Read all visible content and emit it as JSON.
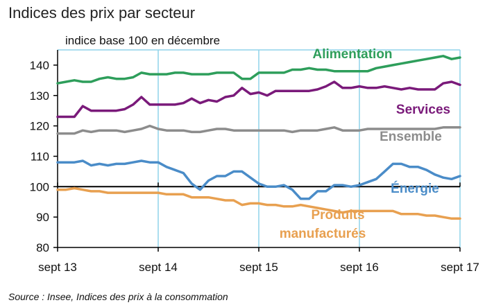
{
  "title": "Indices des prix par secteur",
  "source": "Source : Insee, Indices des prix à la consommation",
  "chart_data": {
    "type": "line",
    "ylabel": "indice base 100 en décembre",
    "ylim": [
      80,
      145
    ],
    "yticks": [
      80,
      90,
      100,
      110,
      120,
      130,
      140
    ],
    "xlim": [
      0,
      48
    ],
    "xticks": [
      0,
      12,
      24,
      36,
      48
    ],
    "xtick_labels": [
      "sept 13",
      "sept 14",
      "sept 15",
      "sept 16",
      "sept 17"
    ],
    "grid": true,
    "reference_line": 100,
    "series": [
      {
        "name": "Alimentation",
        "color": "#2e9e5b",
        "label_lines": [
          "Alimentation"
        ],
        "values": [
          134,
          134.5,
          135,
          134.5,
          134.5,
          135.5,
          136,
          135.5,
          135.5,
          136,
          137.5,
          137,
          137,
          137,
          137.5,
          137.5,
          137,
          137,
          137,
          137.5,
          137.5,
          137.5,
          135.5,
          135.5,
          137.5,
          137.5,
          137.5,
          137.5,
          138.5,
          138.5,
          139,
          138.5,
          138.5,
          138,
          138,
          138,
          138,
          138,
          139,
          139.5,
          140,
          140.5,
          141,
          141.5,
          142,
          142.5,
          143,
          142,
          142.5
        ]
      },
      {
        "name": "Services",
        "color": "#7a1a7a",
        "label_lines": [
          "Services"
        ],
        "values": [
          123,
          123,
          123,
          126.5,
          125,
          125,
          125,
          125,
          125.5,
          127,
          129.5,
          127,
          127,
          127,
          127,
          127.5,
          129,
          127.5,
          128.5,
          128,
          129.5,
          130,
          132.5,
          130.5,
          131,
          130,
          131.5,
          131.5,
          131.5,
          131.5,
          131.5,
          132,
          133,
          134.5,
          132.5,
          132.5,
          133,
          132.5,
          132.5,
          133,
          132.5,
          132,
          132.5,
          132,
          132,
          132,
          134,
          134.5,
          133.5
        ]
      },
      {
        "name": "Ensemble",
        "color": "#8c8c8c",
        "label_lines": [
          "Ensemble"
        ],
        "values": [
          117.5,
          117.5,
          117.5,
          118.5,
          118,
          118.5,
          118.5,
          118.5,
          118,
          118.5,
          119,
          120,
          119,
          118.5,
          118.5,
          118.5,
          118,
          118,
          118.5,
          119,
          119,
          118.5,
          118.5,
          118.5,
          118.5,
          118.5,
          118.5,
          118.5,
          118,
          118.5,
          118.5,
          118.5,
          119,
          119.5,
          118.5,
          118.5,
          118.5,
          119,
          119,
          119,
          119,
          119,
          119,
          119,
          119,
          119,
          119.5,
          119.5,
          119.5
        ]
      },
      {
        "name": "Énergie",
        "color": "#4a8cc8",
        "label_lines": [
          "Énergie"
        ],
        "values": [
          108,
          108,
          108,
          108.5,
          107,
          107.5,
          107,
          107.5,
          107.5,
          108,
          108.5,
          108,
          108,
          106.5,
          105.5,
          104.5,
          101,
          99,
          102,
          103.5,
          103.5,
          105,
          105,
          103,
          101,
          100,
          100,
          100.5,
          99,
          96,
          96,
          98.5,
          98.5,
          100.5,
          100.5,
          100,
          100.5,
          101.5,
          102.5,
          105,
          107.5,
          107.5,
          106.5,
          106.5,
          105.5,
          104,
          103,
          102.5,
          103.5
        ]
      },
      {
        "name": "Produits manufacturés",
        "color": "#e8a050",
        "label_lines": [
          "Produits",
          "manufacturés"
        ],
        "values": [
          99,
          99,
          99.5,
          99,
          98.5,
          98.5,
          98,
          98,
          98,
          98,
          98,
          98,
          98,
          97.5,
          97.5,
          97.5,
          96.5,
          96.5,
          96.5,
          96,
          95.5,
          95.5,
          94,
          94.5,
          94.5,
          94,
          94,
          93.5,
          93.5,
          94,
          93.5,
          93,
          92.5,
          92,
          91.5,
          92,
          92,
          92,
          92,
          92,
          92,
          91,
          91,
          91,
          90.5,
          90.5,
          90,
          89.5,
          89.5
        ]
      }
    ]
  }
}
